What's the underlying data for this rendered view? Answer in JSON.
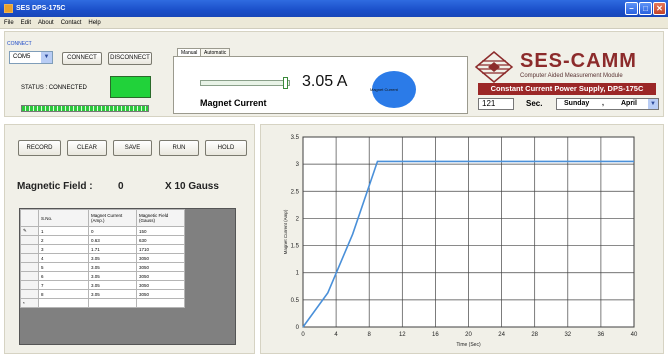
{
  "window": {
    "title": "SES DPS-175C"
  },
  "menu": [
    "File",
    "Edit",
    "About",
    "Contact",
    "Help"
  ],
  "connect": {
    "group_label": "CONNECT",
    "port": "COM5",
    "connect_label": "CONNECT",
    "disconnect_label": "DISCONNECT",
    "status_text": "STATUS :  CONNECTED",
    "status_color": "#21d23a"
  },
  "tabs": [
    {
      "label": "Manual"
    },
    {
      "label": "Automatic"
    }
  ],
  "manual": {
    "current_display": "3.05 A",
    "current_label": "Magnet Current",
    "gauge_label": "Magnet Current",
    "slider_fraction": 0.98
  },
  "logo": {
    "title": "SES-CAMM",
    "subtitle": "Computer Aided Measurement Module",
    "banner": "Constant Current Power Supply, DPS-175C"
  },
  "timer": {
    "seconds": "121",
    "unit": "Sec.",
    "day": "Sunday",
    "separator": ",",
    "month": "April"
  },
  "actions": {
    "record": "RECORD",
    "clear": "CLEAR",
    "save": "SAVE",
    "run": "RUN",
    "hold": "HOLD"
  },
  "readout": {
    "label": "Magnetic Field  :",
    "value": "0",
    "multiplier": "X 10  Gauss"
  },
  "table": {
    "headers": [
      "S.No.",
      "Magnet Current (Amp.)",
      "Magnetic Field (Gauss)"
    ],
    "rows": [
      [
        "1",
        "0",
        "150"
      ],
      [
        "2",
        "0.63",
        "630"
      ],
      [
        "3",
        "1.71",
        "1710"
      ],
      [
        "4",
        "3.05",
        "3050"
      ],
      [
        "5",
        "3.05",
        "3050"
      ],
      [
        "6",
        "3.05",
        "3050"
      ],
      [
        "7",
        "3.05",
        "3050"
      ],
      [
        "8",
        "3.05",
        "3050"
      ]
    ],
    "pointer_marker": "✎",
    "new_row_marker": "*"
  },
  "chart_data": {
    "type": "line",
    "xlabel": "Time (Sec)",
    "ylabel": "Magnet Current (Amp)",
    "xlim": [
      0,
      40
    ],
    "ylim": [
      0,
      3.5
    ],
    "xticks": [
      "0",
      "4",
      "8",
      "12",
      "16",
      "20",
      "24",
      "28",
      "32",
      "36",
      "40"
    ],
    "yticks": [
      "0",
      "0.5",
      "1",
      "1.5",
      "2",
      "2.5",
      "3",
      "3.5"
    ],
    "grid": true,
    "series": [
      {
        "color": "#4a90d9",
        "x": [
          0,
          3,
          6,
          9,
          40
        ],
        "y": [
          0,
          0.63,
          1.71,
          3.05,
          3.05
        ]
      }
    ]
  }
}
